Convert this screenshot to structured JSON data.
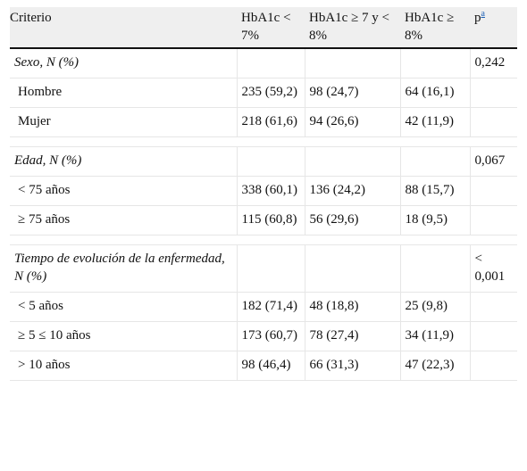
{
  "table": {
    "headers": [
      "Criterio",
      "HbA1c < 7%",
      "HbA1c ≥ 7 y < 8%",
      "HbA1c ≥ 8%",
      "p"
    ],
    "p_footnote": "a",
    "sections": [
      {
        "title": "Sexo, N (%)",
        "p": "0,242",
        "rows": [
          {
            "label": "Hombre",
            "c1": "235 (59,2)",
            "c2": "98 (24,7)",
            "c3": "64 (16,1)"
          },
          {
            "label": "Mujer",
            "c1": "218 (61,6)",
            "c2": "94 (26,6)",
            "c3": "42 (11,9)"
          }
        ]
      },
      {
        "title": "Edad, N (%)",
        "p": "0,067",
        "rows": [
          {
            "label": "< 75 años",
            "c1": "338 (60,1)",
            "c2": "136 (24,2)",
            "c3": "88 (15,7)"
          },
          {
            "label": "≥ 75 años",
            "c1": "115 (60,8)",
            "c2": "56 (29,6)",
            "c3": "18 (9,5)"
          }
        ]
      },
      {
        "title": "Tiempo de evolución de la enfermedad, N (%)",
        "p": "< 0,001",
        "rows": [
          {
            "label": "< 5 años",
            "c1": "182 (71,4)",
            "c2": "48 (18,8)",
            "c3": "25 (9,8)"
          },
          {
            "label": "≥ 5 ≤ 10 años",
            "c1": "173 (60,7)",
            "c2": "78 (27,4)",
            "c3": "34 (11,9)"
          },
          {
            "label": "> 10 años",
            "c1": "98 (46,4)",
            "c2": "66 (31,3)",
            "c3": "47 (22,3)"
          }
        ]
      }
    ]
  }
}
